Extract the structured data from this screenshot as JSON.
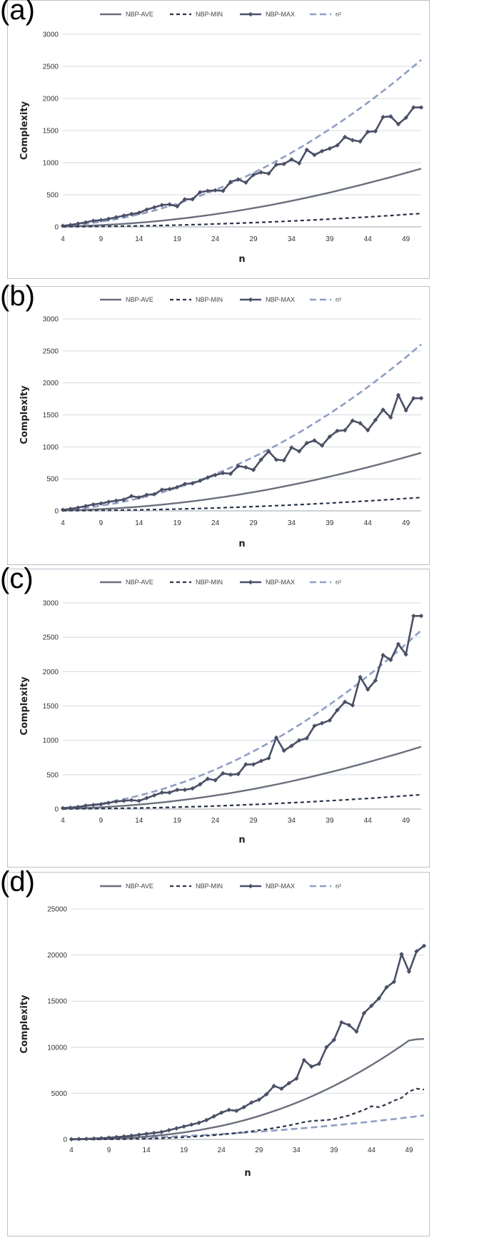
{
  "series_styles": {
    "NBP-AVE": {
      "color": "#6a6f7e",
      "dash": "",
      "width": 2.4,
      "marker": false
    },
    "NBP-MIN": {
      "color": "#2b3447",
      "dash": "5,4",
      "width": 2.2,
      "marker": false
    },
    "NBP-MAX": {
      "color": "#4a5066",
      "dash": "",
      "width": 2.6,
      "marker": true
    },
    "n²": {
      "color": "#8f9ec4",
      "dash": "9,5",
      "width": 2.6,
      "marker": false
    }
  },
  "chart_data": [
    {
      "panel_label": "(a)",
      "type": "line",
      "xlabel": "n",
      "ylabel": "Complexity",
      "ylim": [
        0,
        3000
      ],
      "yticks": [
        0,
        500,
        1000,
        1500,
        2000,
        2500,
        3000
      ],
      "xticks": [
        4,
        9,
        14,
        19,
        24,
        29,
        34,
        39,
        44,
        49
      ],
      "grid": true,
      "legend": "top",
      "legend_entries": [
        "NBP-AVE",
        "NBP-MIN",
        "NBP-MAX",
        "n²"
      ],
      "x": [
        4,
        5,
        6,
        7,
        8,
        9,
        10,
        11,
        12,
        13,
        14,
        15,
        16,
        17,
        18,
        19,
        20,
        21,
        22,
        23,
        24,
        25,
        26,
        27,
        28,
        29,
        30,
        31,
        32,
        33,
        34,
        35,
        36,
        37,
        38,
        39,
        40,
        41,
        42,
        43,
        44,
        45,
        46,
        47,
        48,
        49,
        50,
        51
      ],
      "series": [
        {
          "name": "NBP-AVE",
          "values": [
            5,
            8,
            12,
            16,
            21,
            27,
            33,
            40,
            48,
            56,
            65,
            75,
            86,
            97,
            109,
            122,
            136,
            150,
            165,
            181,
            198,
            215,
            233,
            252,
            272,
            292,
            313,
            335,
            358,
            381,
            405,
            430,
            455,
            481,
            508,
            535,
            563,
            592,
            621,
            651,
            681,
            712,
            743,
            775,
            807,
            840,
            873,
            907
          ]
        },
        {
          "name": "NBP-MIN",
          "values": [
            2,
            3,
            4,
            5,
            6,
            7,
            8,
            10,
            12,
            14,
            16,
            18,
            20,
            22,
            25,
            28,
            31,
            34,
            37,
            41,
            45,
            49,
            53,
            57,
            62,
            66,
            71,
            76,
            81,
            86,
            92,
            97,
            103,
            109,
            115,
            121,
            128,
            134,
            141,
            148,
            155,
            162,
            170,
            177,
            185,
            193,
            201,
            209
          ]
        },
        {
          "name": "NBP-MAX",
          "values": [
            16,
            30,
            50,
            70,
            95,
            105,
            125,
            150,
            175,
            200,
            220,
            270,
            305,
            340,
            350,
            320,
            430,
            430,
            540,
            560,
            570,
            560,
            700,
            740,
            690,
            810,
            850,
            830,
            970,
            980,
            1050,
            990,
            1200,
            1120,
            1180,
            1220,
            1270,
            1400,
            1350,
            1330,
            1480,
            1490,
            1710,
            1720,
            1600,
            1700,
            1860,
            1860
          ]
        },
        {
          "name": "n²",
          "values": [
            16,
            25,
            36,
            49,
            64,
            81,
            100,
            121,
            144,
            169,
            196,
            225,
            256,
            289,
            324,
            361,
            400,
            441,
            484,
            529,
            576,
            625,
            676,
            729,
            784,
            841,
            900,
            961,
            1024,
            1089,
            1156,
            1225,
            1296,
            1369,
            1444,
            1521,
            1600,
            1681,
            1764,
            1849,
            1936,
            2025,
            2116,
            2209,
            2304,
            2401,
            2500,
            2601
          ]
        }
      ]
    },
    {
      "panel_label": "(b)",
      "type": "line",
      "xlabel": "n",
      "ylabel": "Complexity",
      "ylim": [
        0,
        3000
      ],
      "yticks": [
        0,
        500,
        1000,
        1500,
        2000,
        2500,
        3000
      ],
      "xticks": [
        4,
        9,
        14,
        19,
        24,
        29,
        34,
        39,
        44,
        49
      ],
      "grid": true,
      "legend": "top",
      "legend_entries": [
        "NBP-AVE",
        "NBP-MIN",
        "NBP-MAX",
        "n²"
      ],
      "x": [
        4,
        5,
        6,
        7,
        8,
        9,
        10,
        11,
        12,
        13,
        14,
        15,
        16,
        17,
        18,
        19,
        20,
        21,
        22,
        23,
        24,
        25,
        26,
        27,
        28,
        29,
        30,
        31,
        32,
        33,
        34,
        35,
        36,
        37,
        38,
        39,
        40,
        41,
        42,
        43,
        44,
        45,
        46,
        47,
        48,
        49,
        50,
        51
      ],
      "series": [
        {
          "name": "NBP-AVE",
          "values": [
            5,
            8,
            12,
            16,
            21,
            27,
            33,
            40,
            48,
            56,
            65,
            75,
            86,
            97,
            109,
            122,
            136,
            150,
            165,
            181,
            198,
            215,
            233,
            252,
            272,
            292,
            313,
            335,
            358,
            381,
            405,
            430,
            455,
            481,
            508,
            535,
            563,
            592,
            621,
            651,
            681,
            712,
            743,
            775,
            807,
            840,
            873,
            907
          ]
        },
        {
          "name": "NBP-MIN",
          "values": [
            2,
            3,
            4,
            5,
            6,
            7,
            8,
            10,
            12,
            14,
            16,
            18,
            20,
            22,
            25,
            28,
            31,
            34,
            37,
            41,
            45,
            49,
            53,
            57,
            62,
            66,
            71,
            76,
            81,
            86,
            92,
            97,
            103,
            109,
            115,
            121,
            128,
            134,
            141,
            148,
            155,
            162,
            170,
            177,
            185,
            193,
            201,
            209
          ]
        },
        {
          "name": "NBP-MAX",
          "values": [
            16,
            30,
            50,
            75,
            100,
            115,
            140,
            160,
            175,
            230,
            210,
            250,
            260,
            330,
            340,
            370,
            420,
            430,
            470,
            520,
            560,
            590,
            580,
            700,
            680,
            640,
            800,
            930,
            800,
            790,
            990,
            930,
            1060,
            1100,
            1020,
            1160,
            1250,
            1260,
            1410,
            1370,
            1260,
            1420,
            1580,
            1460,
            1810,
            1570,
            1760,
            1760
          ]
        },
        {
          "name": "n²",
          "values": [
            16,
            25,
            36,
            49,
            64,
            81,
            100,
            121,
            144,
            169,
            196,
            225,
            256,
            289,
            324,
            361,
            400,
            441,
            484,
            529,
            576,
            625,
            676,
            729,
            784,
            841,
            900,
            961,
            1024,
            1089,
            1156,
            1225,
            1296,
            1369,
            1444,
            1521,
            1600,
            1681,
            1764,
            1849,
            1936,
            2025,
            2116,
            2209,
            2304,
            2401,
            2500,
            2601
          ]
        }
      ]
    },
    {
      "panel_label": "(c)",
      "type": "line",
      "xlabel": "n",
      "ylabel": "Complexity",
      "ylim": [
        0,
        3000
      ],
      "yticks": [
        0,
        500,
        1000,
        1500,
        2000,
        2500,
        3000
      ],
      "xticks": [
        4,
        9,
        14,
        19,
        24,
        29,
        34,
        39,
        44,
        49
      ],
      "grid": true,
      "legend": "top",
      "legend_entries": [
        "NBP-AVE",
        "NBP-MIN",
        "NBP-MAX",
        "n²"
      ],
      "x": [
        4,
        5,
        6,
        7,
        8,
        9,
        10,
        11,
        12,
        13,
        14,
        15,
        16,
        17,
        18,
        19,
        20,
        21,
        22,
        23,
        24,
        25,
        26,
        27,
        28,
        29,
        30,
        31,
        32,
        33,
        34,
        35,
        36,
        37,
        38,
        39,
        40,
        41,
        42,
        43,
        44,
        45,
        46,
        47,
        48,
        49,
        50,
        51
      ],
      "series": [
        {
          "name": "NBP-AVE",
          "values": [
            5,
            8,
            12,
            16,
            21,
            27,
            33,
            40,
            48,
            56,
            65,
            75,
            86,
            97,
            109,
            122,
            136,
            150,
            165,
            181,
            198,
            215,
            233,
            252,
            272,
            292,
            313,
            335,
            358,
            381,
            405,
            430,
            455,
            481,
            508,
            535,
            563,
            592,
            621,
            651,
            681,
            712,
            743,
            775,
            807,
            840,
            873,
            907
          ]
        },
        {
          "name": "NBP-MIN",
          "values": [
            2,
            3,
            4,
            5,
            6,
            7,
            8,
            10,
            12,
            14,
            16,
            18,
            20,
            22,
            25,
            28,
            31,
            34,
            37,
            41,
            45,
            49,
            53,
            57,
            62,
            66,
            71,
            76,
            81,
            86,
            92,
            97,
            103,
            109,
            115,
            121,
            128,
            134,
            141,
            148,
            155,
            162,
            170,
            177,
            185,
            193,
            201,
            209
          ]
        },
        {
          "name": "NBP-MAX",
          "values": [
            14,
            20,
            30,
            50,
            60,
            70,
            90,
            110,
            120,
            130,
            120,
            160,
            200,
            240,
            240,
            280,
            280,
            300,
            360,
            440,
            420,
            520,
            500,
            510,
            650,
            650,
            700,
            740,
            1040,
            850,
            920,
            1000,
            1030,
            1210,
            1250,
            1290,
            1440,
            1560,
            1510,
            1920,
            1740,
            1870,
            2240,
            2170,
            2400,
            2250,
            2810,
            2810
          ]
        },
        {
          "name": "n²",
          "values": [
            16,
            25,
            36,
            49,
            64,
            81,
            100,
            121,
            144,
            169,
            196,
            225,
            256,
            289,
            324,
            361,
            400,
            441,
            484,
            529,
            576,
            625,
            676,
            729,
            784,
            841,
            900,
            961,
            1024,
            1089,
            1156,
            1225,
            1296,
            1369,
            1444,
            1521,
            1600,
            1681,
            1764,
            1849,
            1936,
            2025,
            2116,
            2209,
            2304,
            2401,
            2500,
            2601
          ]
        }
      ]
    },
    {
      "panel_label": "(d)",
      "type": "line",
      "xlabel": "n",
      "ylabel": "Complexity",
      "ylim": [
        0,
        25000
      ],
      "yticks": [
        0,
        5000,
        10000,
        15000,
        20000,
        25000
      ],
      "xticks": [
        4,
        9,
        14,
        19,
        24,
        29,
        34,
        39,
        44,
        49
      ],
      "grid": true,
      "legend": "top",
      "legend_entries": [
        "NBP-AVE",
        "NBP-MIN",
        "NBP-MAX",
        "n²"
      ],
      "x": [
        4,
        5,
        6,
        7,
        8,
        9,
        10,
        11,
        12,
        13,
        14,
        15,
        16,
        17,
        18,
        19,
        20,
        21,
        22,
        23,
        24,
        25,
        26,
        27,
        28,
        29,
        30,
        31,
        32,
        33,
        34,
        35,
        36,
        37,
        38,
        39,
        40,
        41,
        42,
        43,
        44,
        45,
        46,
        47,
        48,
        49,
        50,
        51
      ],
      "series": [
        {
          "name": "NBP-AVE",
          "values": [
            5,
            10,
            20,
            35,
            55,
            80,
            110,
            150,
            195,
            250,
            310,
            380,
            460,
            550,
            650,
            760,
            880,
            1010,
            1150,
            1310,
            1480,
            1660,
            1860,
            2070,
            2300,
            2540,
            2800,
            3070,
            3360,
            3660,
            3980,
            4310,
            4660,
            5030,
            5410,
            5810,
            6230,
            6660,
            7110,
            7580,
            8060,
            8560,
            9080,
            9610,
            10160,
            10730,
            10860,
            10900
          ]
        },
        {
          "name": "NBP-MIN",
          "values": [
            2,
            3,
            5,
            8,
            12,
            17,
            24,
            33,
            45,
            60,
            78,
            100,
            130,
            160,
            200,
            240,
            290,
            340,
            400,
            460,
            530,
            610,
            690,
            780,
            880,
            990,
            1100,
            1230,
            1370,
            1520,
            1690,
            1870,
            2000,
            2050,
            2100,
            2200,
            2400,
            2600,
            2900,
            3200,
            3600,
            3500,
            3800,
            4200,
            4500,
            5200,
            5500,
            5400
          ]
        },
        {
          "name": "NBP-MAX",
          "values": [
            20,
            40,
            60,
            90,
            130,
            180,
            250,
            320,
            400,
            500,
            600,
            700,
            800,
            1000,
            1200,
            1400,
            1600,
            1800,
            2100,
            2500,
            2900,
            3200,
            3100,
            3500,
            4000,
            4300,
            4900,
            5800,
            5500,
            6100,
            6600,
            8600,
            7900,
            8200,
            10000,
            10800,
            12700,
            12400,
            11700,
            13700,
            14500,
            15300,
            16500,
            17100,
            20100,
            18200,
            20400,
            21000
          ]
        },
        {
          "name": "n²",
          "values": [
            16,
            25,
            36,
            49,
            64,
            81,
            100,
            121,
            144,
            169,
            196,
            225,
            256,
            289,
            324,
            361,
            400,
            441,
            484,
            529,
            576,
            625,
            676,
            729,
            784,
            841,
            900,
            961,
            1024,
            1089,
            1156,
            1225,
            1296,
            1369,
            1444,
            1521,
            1600,
            1681,
            1764,
            1849,
            1936,
            2025,
            2116,
            2209,
            2304,
            2401,
            2500,
            2601
          ]
        }
      ]
    }
  ]
}
